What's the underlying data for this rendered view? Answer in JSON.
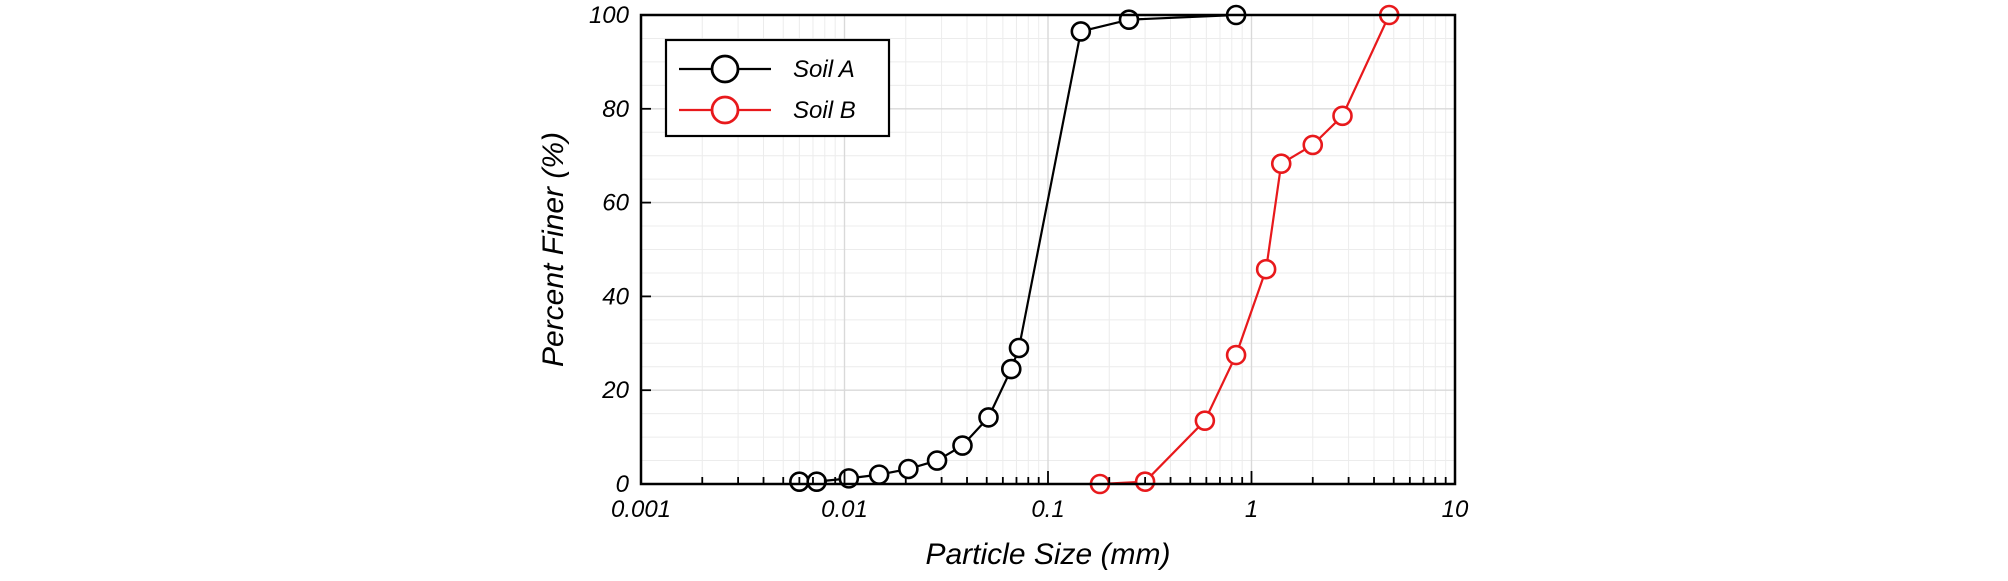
{
  "chart_data": {
    "type": "scatter",
    "title": "",
    "xlabel": "Particle Size (mm)",
    "ylabel": "Percent Finer (%)",
    "x_scale": "log",
    "xlim": [
      0.001,
      10
    ],
    "ylim": [
      0,
      100
    ],
    "x_ticks": [
      0.001,
      0.01,
      0.1,
      1,
      10
    ],
    "x_tick_labels": [
      "0.001",
      "0.01",
      "0.1",
      "1",
      "10"
    ],
    "y_ticks": [
      0,
      20,
      40,
      60,
      80,
      100
    ],
    "y_tick_labels": [
      "0",
      "20",
      "40",
      "60",
      "80",
      "100"
    ],
    "grid": true,
    "legend_position": "top-left",
    "series": [
      {
        "name": "Soil A",
        "color": "#000000",
        "marker": "open-circle",
        "connected": true,
        "x": [
          0.006,
          0.0073,
          0.0105,
          0.0148,
          0.0206,
          0.0285,
          0.038,
          0.051,
          0.066,
          0.072,
          0.145,
          0.25,
          0.84
        ],
        "y": [
          0.5,
          0.5,
          1.2,
          2.0,
          3.2,
          5.0,
          8.2,
          14.2,
          24.5,
          29.0,
          96.5,
          99.0,
          100
        ]
      },
      {
        "name": "Soil B",
        "color": "#e8191c",
        "marker": "open-circle",
        "connected": true,
        "x": [
          0.18,
          0.3,
          0.59,
          0.84,
          1.18,
          1.4,
          2.0,
          2.8,
          4.75
        ],
        "y": [
          0,
          0.5,
          13.5,
          27.5,
          45.8,
          68.3,
          72.3,
          78.5,
          100
        ]
      }
    ]
  }
}
